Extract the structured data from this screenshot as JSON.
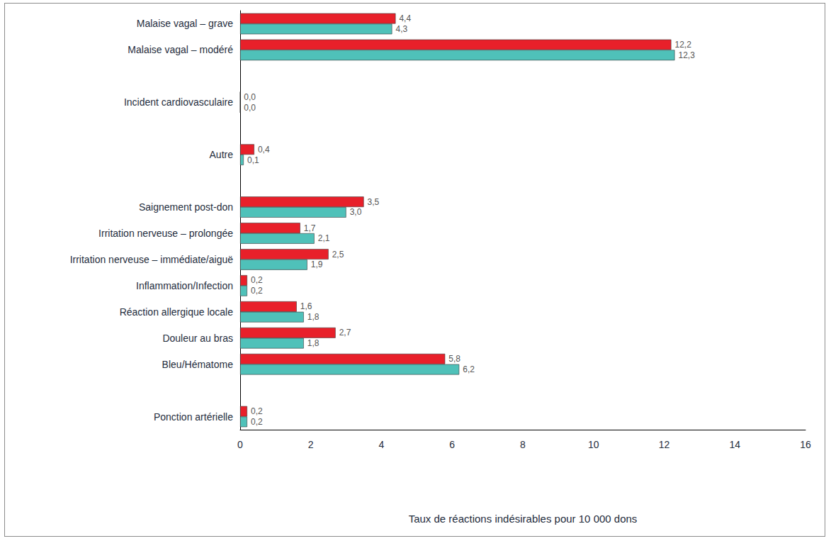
{
  "chart_data": {
    "type": "bar",
    "orientation": "horizontal",
    "xlabel": "Taux de réactions indésirables pour 10 000 dons",
    "categories": [
      "Malaise vagal – grave",
      "Malaise vagal – modéré",
      null,
      "Incident cardiovasculaire",
      null,
      "Autre",
      null,
      "Saignement post-don",
      "Irritation nerveuse – prolongée",
      "Irritation nerveuse – immédiate/aiguë",
      "Inflammation/Infection",
      "Réaction allergique locale",
      "Douleur au bras",
      "Bleu/Hématome",
      null,
      "Ponction artérielle"
    ],
    "series": [
      {
        "color": "#e8202a",
        "values": [
          4.4,
          12.2,
          null,
          0.0,
          null,
          0.4,
          null,
          3.5,
          1.7,
          2.5,
          0.2,
          1.6,
          2.7,
          5.8,
          null,
          0.2
        ],
        "value_labels": [
          "4,4",
          "12,2",
          null,
          "0,0",
          null,
          "0,4",
          null,
          "3,5",
          "1,7",
          "2,5",
          "0,2",
          "1,6",
          "2,7",
          "5,8",
          null,
          "0,2"
        ]
      },
      {
        "color": "#4fc1b9",
        "values": [
          4.3,
          12.3,
          null,
          0.0,
          null,
          0.1,
          null,
          3.0,
          2.1,
          1.9,
          0.2,
          1.8,
          1.8,
          6.2,
          null,
          0.2
        ],
        "value_labels": [
          "4,3",
          "12,3",
          null,
          "0,0",
          null,
          "0,1",
          null,
          "3,0",
          "2,1",
          "1,9",
          "0,2",
          "1,8",
          "1,8",
          "6,2",
          null,
          "0,2"
        ]
      }
    ],
    "xlim": [
      0,
      16
    ],
    "xticks": [
      0,
      2,
      4,
      6,
      8,
      10,
      12,
      14,
      16
    ],
    "grid": false,
    "data_labels": true
  }
}
